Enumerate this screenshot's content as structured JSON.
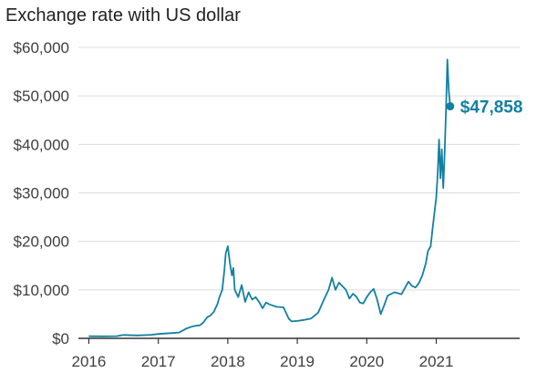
{
  "header": {
    "title": "",
    "subtitle": "Exchange rate with US dollar"
  },
  "chart_data": {
    "type": "line",
    "subtitle": "Exchange rate with US dollar",
    "xlabel": "",
    "ylabel": "",
    "ylim": [
      0,
      60000
    ],
    "xlim": [
      2015.85,
      2022.2
    ],
    "yticks": [
      0,
      10000,
      20000,
      30000,
      40000,
      50000,
      60000
    ],
    "ytick_labels": [
      "$0",
      "$10,000",
      "$20,000",
      "$30,000",
      "$40,000",
      "$50,000",
      "$60,000"
    ],
    "xticks": [
      2016,
      2017,
      2018,
      2019,
      2020,
      2021
    ],
    "xtick_labels": [
      "2016",
      "2017",
      "2018",
      "2019",
      "2020",
      "2021"
    ],
    "grid": true,
    "line_color": "#1380A1",
    "series": [
      {
        "x": [
          2016.0,
          2016.2,
          2016.4,
          2016.5,
          2016.7,
          2016.9,
          2017.0,
          2017.2,
          2017.3,
          2017.4,
          2017.5,
          2017.6,
          2017.65,
          2017.7,
          2017.75,
          2017.8,
          2017.85,
          2017.88,
          2017.92,
          2017.95,
          2017.97,
          2018.0,
          2018.03,
          2018.06,
          2018.08,
          2018.1,
          2018.15,
          2018.2,
          2018.25,
          2018.3,
          2018.35,
          2018.4,
          2018.45,
          2018.5,
          2018.55,
          2018.6,
          2018.7,
          2018.8,
          2018.88,
          2018.92,
          2019.0,
          2019.1,
          2019.2,
          2019.3,
          2019.4,
          2019.45,
          2019.5,
          2019.55,
          2019.6,
          2019.7,
          2019.75,
          2019.8,
          2019.85,
          2019.9,
          2019.95,
          2020.0,
          2020.05,
          2020.1,
          2020.15,
          2020.2,
          2020.25,
          2020.3,
          2020.4,
          2020.5,
          2020.6,
          2020.65,
          2020.7,
          2020.75,
          2020.8,
          2020.85,
          2020.88,
          2020.92,
          2020.95,
          2021.0,
          2021.02,
          2021.04,
          2021.06,
          2021.08,
          2021.1,
          2021.12,
          2021.14,
          2021.16,
          2021.18,
          2021.2
        ],
        "y": [
          430,
          420,
          450,
          700,
          610,
          740,
          900,
          1100,
          1200,
          2000,
          2500,
          2700,
          3300,
          4300,
          4700,
          5500,
          7000,
          8500,
          10000,
          14000,
          17500,
          19000,
          15500,
          13000,
          14500,
          10000,
          8500,
          11000,
          7500,
          9500,
          8000,
          8500,
          7500,
          6200,
          7400,
          7000,
          6500,
          6400,
          4000,
          3500,
          3600,
          3800,
          4100,
          5300,
          8500,
          10000,
          12500,
          10000,
          11500,
          10000,
          8200,
          9200,
          8600,
          7400,
          7200,
          8500,
          9500,
          10200,
          8000,
          5000,
          6800,
          8800,
          9500,
          9100,
          11700,
          10800,
          10500,
          11400,
          13000,
          15500,
          18000,
          19000,
          23000,
          29000,
          34000,
          41000,
          33000,
          39000,
          31000,
          38000,
          47000,
          57500,
          51000,
          47858
        ]
      }
    ],
    "end_point": {
      "x": 2021.2,
      "y": 47858
    },
    "annotations": [
      {
        "text": "$47,858",
        "x": 2021.2,
        "y": 47858
      }
    ]
  }
}
